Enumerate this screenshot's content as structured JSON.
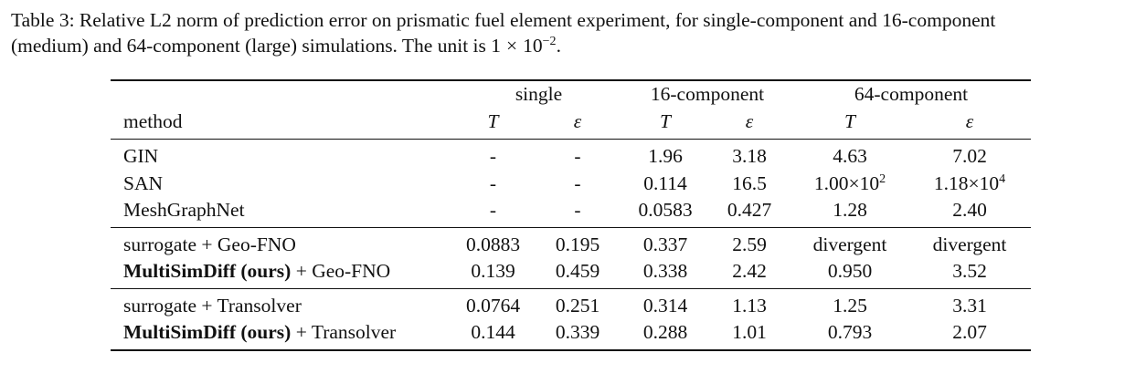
{
  "caption": {
    "line1": "Table 3: Relative L2 norm of prediction error on prismatic fuel element experiment, for single-component and 16-component",
    "line2_text": "(medium) and 64-component (large) simulations. The unit is ",
    "unit_coefficient": "1",
    "unit_times": "×",
    "unit_base": "10",
    "unit_exponent": "−2",
    "line2_end": "."
  },
  "table": {
    "group_headers": [
      "single",
      "16-component",
      "64-component"
    ],
    "method_header": "method",
    "sub_headers": [
      "T",
      "ε",
      "T",
      "ε",
      "T",
      "ε"
    ],
    "rows": [
      {
        "method": "GIN",
        "method_bold": "",
        "method_suffix": "",
        "values": [
          "-",
          "-",
          "1.96",
          "3.18",
          "4.63",
          "7.02"
        ]
      },
      {
        "method": "SAN",
        "method_bold": "",
        "method_suffix": "",
        "values": [
          "-",
          "-",
          "0.114",
          "16.5",
          "",
          ""
        ],
        "sci": [
          {
            "mantissa": "1.00",
            "times": "×",
            "base": "10",
            "exp": "2"
          },
          {
            "mantissa": "1.18",
            "times": "×",
            "base": "10",
            "exp": "4"
          }
        ]
      },
      {
        "method": "MeshGraphNet",
        "method_bold": "",
        "method_suffix": "",
        "values": [
          "-",
          "-",
          "0.0583",
          "0.427",
          "1.28",
          "2.40"
        ]
      },
      {
        "method": "surrogate + Geo-FNO",
        "method_bold": "",
        "method_suffix": "",
        "values": [
          "0.0883",
          "0.195",
          "0.337",
          "2.59",
          "divergent",
          "divergent"
        ],
        "bold": [
          false,
          false,
          true,
          false,
          false,
          false
        ]
      },
      {
        "method": "",
        "method_bold": "MultiSimDiff (ours)",
        "method_suffix": " + Geo-FNO",
        "values": [
          "0.139",
          "0.459",
          "0.338",
          "2.42",
          "0.950",
          "3.52"
        ],
        "bold": [
          false,
          false,
          false,
          true,
          true,
          true
        ]
      },
      {
        "method": "surrogate + Transolver",
        "method_bold": "",
        "method_suffix": "",
        "values": [
          "0.0764",
          "0.251",
          "0.314",
          "1.13",
          "1.25",
          "3.31"
        ],
        "bold": [
          false,
          false,
          false,
          false,
          false,
          false
        ]
      },
      {
        "method": "",
        "method_bold": "MultiSimDiff (ours)",
        "method_suffix": " + Transolver",
        "values": [
          "0.144",
          "0.339",
          "0.288",
          "1.01",
          "0.793",
          "2.07"
        ],
        "bold": [
          false,
          false,
          true,
          true,
          true,
          true
        ]
      }
    ]
  }
}
